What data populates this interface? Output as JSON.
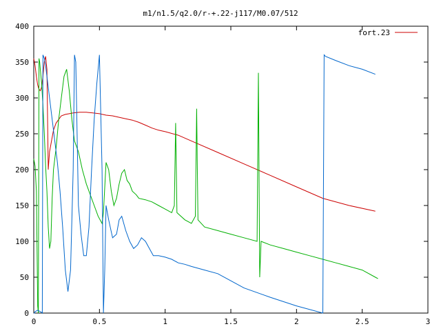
{
  "chart_data": {
    "type": "line",
    "title": "m1/n1.5/q2.0/r-+.22-j117/M0.07/512",
    "xlabel": "",
    "ylabel": "",
    "xlim": [
      0,
      3
    ],
    "ylim": [
      0,
      400
    ],
    "x_ticks": [
      "0",
      "0.5",
      "1",
      "1.5",
      "2",
      "2.5",
      "3"
    ],
    "y_ticks": [
      "0",
      "50",
      "100",
      "150",
      "200",
      "250",
      "300",
      "350",
      "400"
    ],
    "grid": false,
    "legend_position": "top-right",
    "series": [
      {
        "name": "fort.23",
        "color": "#cc0000",
        "x": [
          0.0,
          0.01,
          0.02,
          0.03,
          0.04,
          0.05,
          0.06,
          0.07,
          0.08,
          0.09,
          0.1,
          0.11,
          0.12,
          0.13,
          0.15,
          0.17,
          0.19,
          0.21,
          0.24,
          0.27,
          0.3,
          0.35,
          0.4,
          0.45,
          0.5,
          0.55,
          0.6,
          0.65,
          0.7,
          0.75,
          0.8,
          0.85,
          0.9,
          0.95,
          1.0,
          1.1,
          1.2,
          1.4,
          1.6,
          1.8,
          2.0,
          2.2,
          2.4,
          2.6
        ],
        "y": [
          355,
          345,
          330,
          318,
          312,
          310,
          315,
          330,
          350,
          358,
          340,
          200,
          225,
          235,
          255,
          265,
          270,
          275,
          277,
          278,
          279,
          280,
          280,
          279,
          278,
          276,
          275,
          273,
          271,
          269,
          266,
          262,
          258,
          255,
          253,
          248,
          240,
          224,
          208,
          192,
          176,
          160,
          150,
          142
        ]
      },
      {
        "name": "",
        "color": "#00b000",
        "x": [
          0.0,
          0.01,
          0.02,
          0.03,
          0.035,
          0.04,
          0.045,
          0.05,
          0.06,
          0.07,
          0.08,
          0.09,
          0.1,
          0.11,
          0.12,
          0.13,
          0.14,
          0.15,
          0.17,
          0.19,
          0.21,
          0.23,
          0.25,
          0.27,
          0.29,
          0.31,
          0.32,
          0.34,
          0.37,
          0.4,
          0.43,
          0.46,
          0.49,
          0.52,
          0.53,
          0.55,
          0.57,
          0.59,
          0.61,
          0.63,
          0.65,
          0.67,
          0.69,
          0.71,
          0.73,
          0.75,
          0.78,
          0.8,
          0.85,
          0.9,
          0.95,
          1.0,
          1.05,
          1.07,
          1.08,
          1.09,
          1.15,
          1.2,
          1.23,
          1.24,
          1.25,
          1.3,
          1.4,
          1.5,
          1.6,
          1.7,
          1.71,
          1.72,
          1.73,
          1.8,
          1.9,
          2.0,
          2.1,
          2.2,
          2.3,
          2.4,
          2.5,
          2.6,
          2.62
        ],
        "y": [
          215,
          205,
          170,
          10,
          0,
          355,
          350,
          340,
          320,
          290,
          250,
          205,
          170,
          120,
          90,
          100,
          160,
          200,
          230,
          270,
          300,
          330,
          340,
          310,
          270,
          240,
          235,
          225,
          200,
          180,
          165,
          150,
          135,
          125,
          140,
          210,
          200,
          170,
          150,
          160,
          180,
          195,
          200,
          185,
          180,
          170,
          165,
          160,
          158,
          155,
          150,
          145,
          140,
          150,
          265,
          140,
          130,
          125,
          135,
          285,
          130,
          120,
          115,
          110,
          105,
          100,
          335,
          50,
          100,
          95,
          90,
          85,
          80,
          75,
          70,
          65,
          60,
          50,
          48
        ]
      },
      {
        "name": "",
        "color": "#0066cc",
        "x": [
          0.0,
          0.005,
          0.01,
          0.02,
          0.03,
          0.04,
          0.05,
          0.06,
          0.065,
          0.07,
          0.08,
          0.09,
          0.1,
          0.12,
          0.14,
          0.16,
          0.18,
          0.2,
          0.22,
          0.24,
          0.26,
          0.28,
          0.3,
          0.31,
          0.32,
          0.33,
          0.34,
          0.36,
          0.38,
          0.4,
          0.42,
          0.44,
          0.46,
          0.48,
          0.5,
          0.52,
          0.53,
          0.54,
          0.55,
          0.57,
          0.6,
          0.63,
          0.65,
          0.67,
          0.7,
          0.73,
          0.76,
          0.79,
          0.82,
          0.85,
          0.88,
          0.91,
          0.95,
          1.0,
          1.05,
          1.1,
          1.15,
          1.2,
          1.3,
          1.4,
          1.5,
          1.6,
          1.8,
          2.0,
          2.2,
          2.21,
          2.22,
          2.3,
          2.4,
          2.5,
          2.6
        ],
        "y": [
          0,
          0,
          2,
          3,
          4,
          3,
          2,
          1,
          0,
          360,
          355,
          345,
          330,
          300,
          270,
          240,
          210,
          170,
          120,
          60,
          30,
          60,
          200,
          360,
          350,
          250,
          150,
          110,
          80,
          80,
          120,
          200,
          270,
          320,
          360,
          200,
          0,
          60,
          150,
          130,
          105,
          110,
          130,
          135,
          115,
          100,
          90,
          95,
          105,
          100,
          90,
          80,
          80,
          78,
          75,
          70,
          68,
          65,
          60,
          55,
          45,
          35,
          22,
          10,
          0,
          360,
          358,
          352,
          345,
          340,
          333
        ]
      }
    ]
  }
}
